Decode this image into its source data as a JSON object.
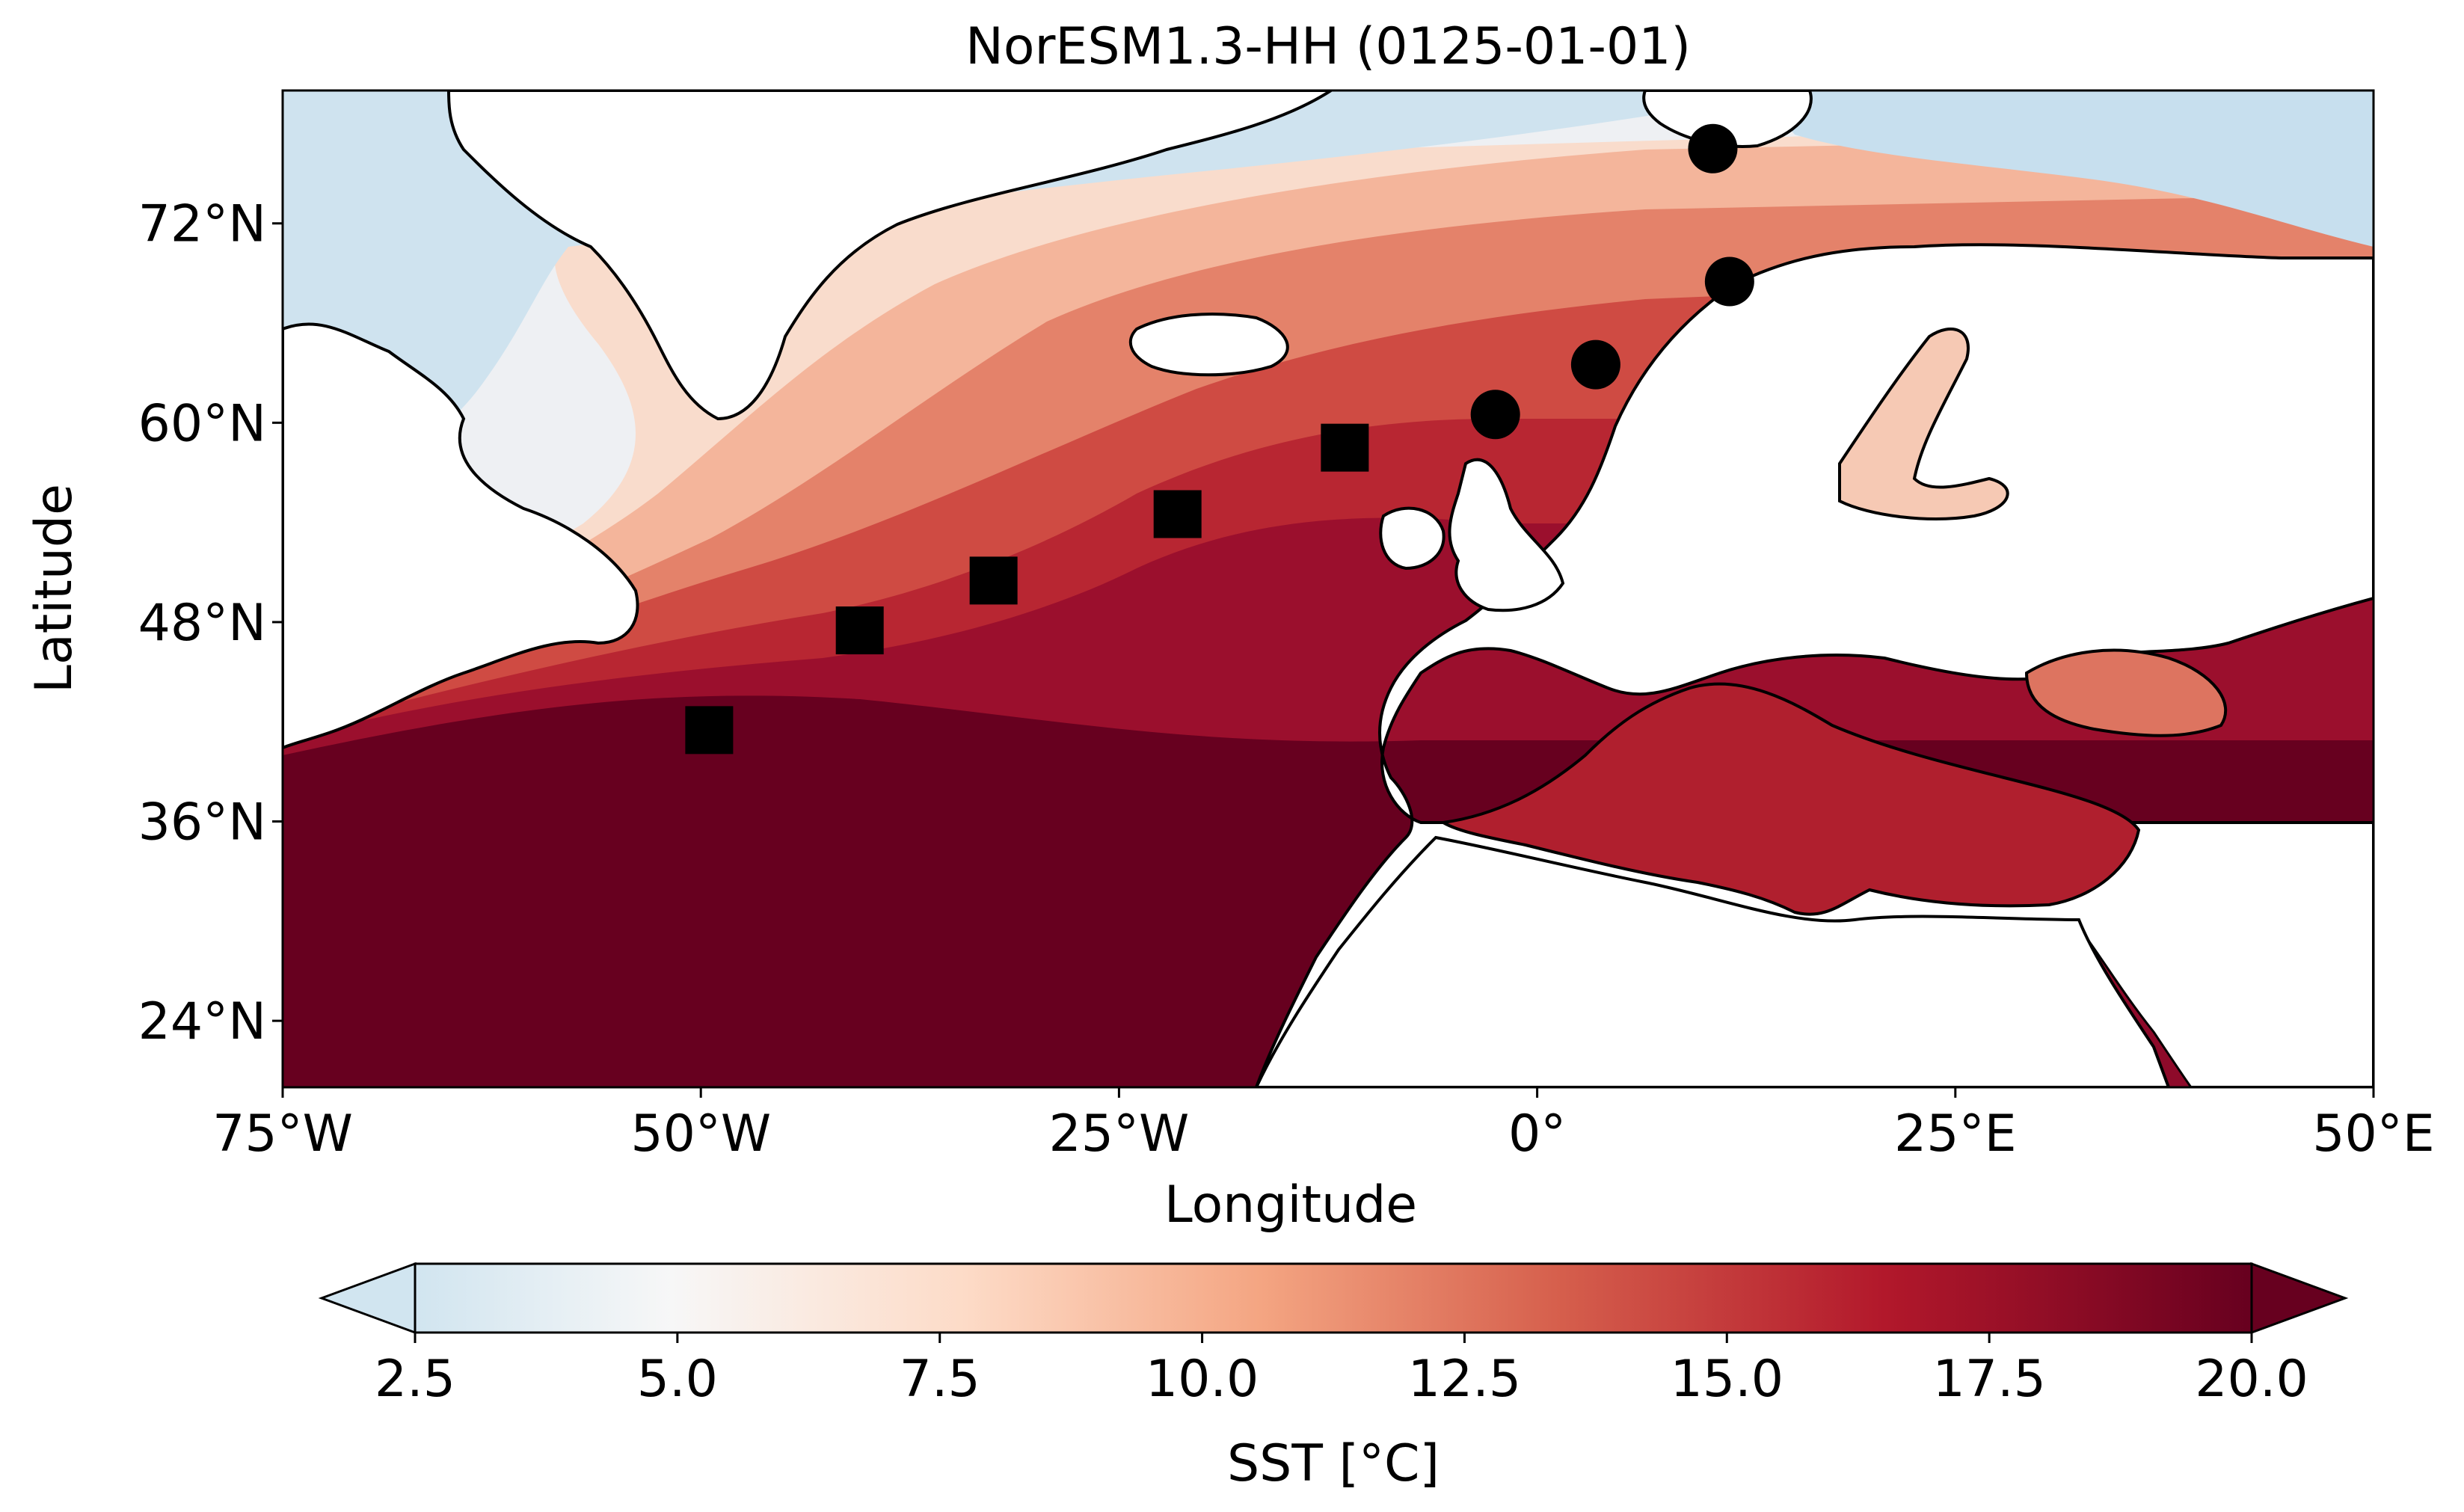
{
  "chart_data": {
    "type": "map",
    "title": "NorESM1.3-HH (0125-01-01)",
    "xlabel": "Longitude",
    "ylabel": "Latitude",
    "xlim": [
      -75,
      50
    ],
    "ylim": [
      20,
      80
    ],
    "x_ticks": [
      {
        "value": -75,
        "label": "75°W"
      },
      {
        "value": -50,
        "label": "50°W"
      },
      {
        "value": -25,
        "label": "25°W"
      },
      {
        "value": 0,
        "label": "0°"
      },
      {
        "value": 25,
        "label": "25°E"
      },
      {
        "value": 50,
        "label": "50°E"
      }
    ],
    "y_ticks": [
      {
        "value": 24,
        "label": "24°N"
      },
      {
        "value": 36,
        "label": "36°N"
      },
      {
        "value": 48,
        "label": "48°N"
      },
      {
        "value": 60,
        "label": "60°N"
      },
      {
        "value": 72,
        "label": "72°N"
      }
    ],
    "colorbar": {
      "label": "SST [°C]",
      "colormap": "RdBu_r (upper half)",
      "vmin": 2.5,
      "vmax": 20.0,
      "extend": "both",
      "ticks": [
        "2.5",
        "5.0",
        "7.5",
        "10.0",
        "12.5",
        "15.0",
        "17.5",
        "20.0"
      ],
      "colors": [
        "#d1e5f0",
        "#f7f7f7",
        "#fddbc7",
        "#f4a582",
        "#d6604d",
        "#b2182b",
        "#67001f"
      ]
    },
    "land_color": "#ffffff",
    "coastline_color": "#000000",
    "markers": {
      "squares": [
        {
          "lon": -49.5,
          "lat": 41.5
        },
        {
          "lon": -40.5,
          "lat": 47.5
        },
        {
          "lon": -32.5,
          "lat": 50.5
        },
        {
          "lon": -21.5,
          "lat": 54.5
        },
        {
          "lon": -11.5,
          "lat": 58.5
        }
      ],
      "circles": [
        {
          "lon": -2.5,
          "lat": 60.5
        },
        {
          "lon": 3.5,
          "lat": 63.5
        },
        {
          "lon": 11.5,
          "lat": 68.5
        },
        {
          "lon": 10.5,
          "lat": 76.5
        }
      ],
      "color": "#000000"
    }
  }
}
